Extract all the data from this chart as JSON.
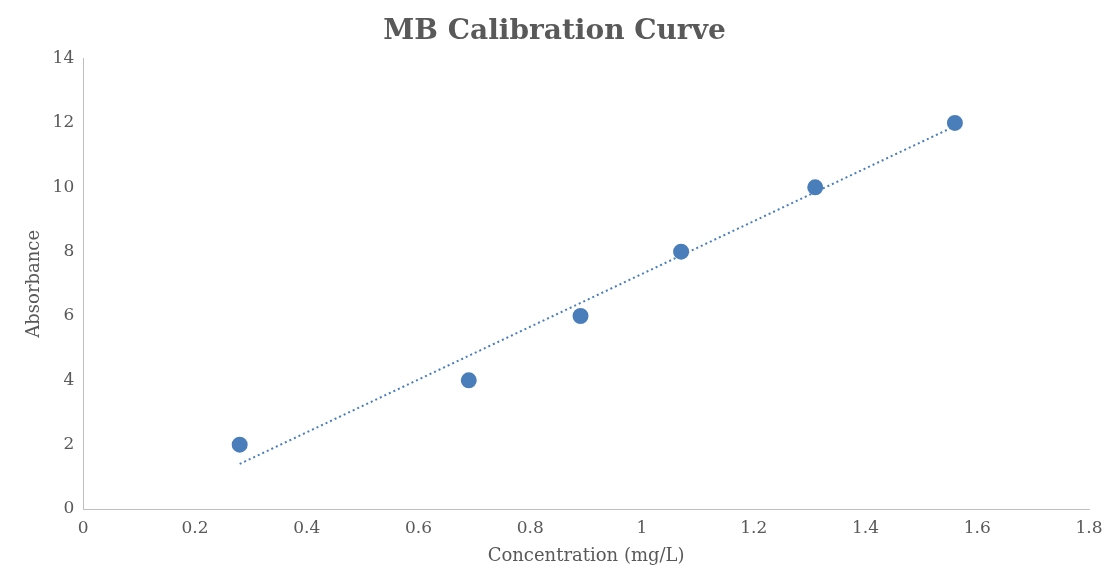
{
  "chart_data": {
    "type": "scatter",
    "title": "MB Calibration Curve",
    "xlabel": "Concentration (mg/L)",
    "ylabel": "Absorbance",
    "x": [
      0.28,
      0.69,
      0.89,
      1.07,
      1.31,
      1.56
    ],
    "series": [
      {
        "color": "#4a7ebb",
        "values": [
          2,
          4,
          6,
          8,
          10,
          12
        ],
        "marker": "circle"
      },
      {
        "type": "line",
        "color": "#4a7ebb",
        "x": [
          0.28,
          1.56
        ],
        "values": [
          1.4,
          11.9
        ],
        "line_style": "dotted",
        "marker": "none"
      }
    ],
    "xlim": [
      0,
      1.8
    ],
    "xticks": [
      0,
      0.2,
      0.4,
      0.6,
      0.8,
      1,
      1.2,
      1.4,
      1.6,
      1.8
    ],
    "ylim": [
      0,
      14
    ],
    "yticks": [
      0,
      2,
      4,
      6,
      8,
      10,
      12,
      14
    ],
    "grid": false,
    "legend": false
  }
}
